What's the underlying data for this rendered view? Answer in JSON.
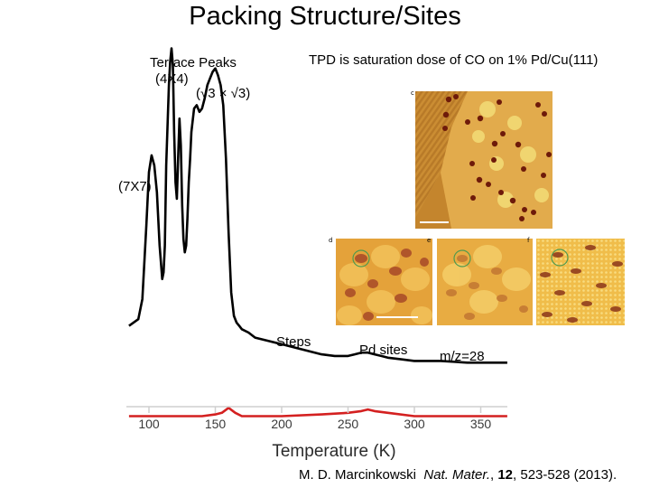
{
  "slide": {
    "title": "Packing Structure/Sites",
    "subtitle": "TPD is saturation dose of CO on 1% Pd/Cu(111)"
  },
  "annotations": {
    "terrace_peaks": "Terrace Peaks",
    "four_by_four": "(4X4)",
    "root3": "(√3 × √3)",
    "seven_by_seven": "(7X7)",
    "steps": "Steps",
    "pd_sites": "Pd sites",
    "mz": "m/z=28"
  },
  "stm_panels": {
    "c": "c",
    "d": "d",
    "e": "e",
    "f": "f"
  },
  "citation": {
    "author": "M. D. Marcinkowski",
    "journal": "Nat. Mater.",
    "comma1": ",",
    "volume": "12",
    "pages": ", 523-528 (2013)."
  },
  "colors": {
    "main_trace": "#000000",
    "reference_trace": "#d42020",
    "stm_background": "#e3a33e",
    "circle_marker": "#4f9a4f"
  },
  "chart_data": {
    "type": "line",
    "xlabel": "Temperature (K)",
    "xlim": [
      85,
      370
    ],
    "x_ticks": [
      100,
      150,
      200,
      250,
      300,
      350
    ],
    "y_axis_shown": false,
    "series": [
      {
        "color": "#000000",
        "x": [
          85,
          92,
          95,
          98,
          100,
          102,
          104,
          106,
          108,
          110,
          111,
          112,
          113,
          115,
          116,
          117,
          118,
          119,
          120,
          121,
          122,
          123,
          124,
          125,
          126,
          127,
          128,
          129,
          130,
          131,
          132,
          134,
          136,
          138,
          140,
          142,
          144,
          146,
          148,
          150,
          152,
          154,
          156,
          158,
          160,
          162,
          164,
          166,
          168,
          170,
          175,
          180,
          190,
          200,
          210,
          220,
          230,
          240,
          250,
          255,
          260,
          265,
          270,
          275,
          280,
          290,
          300,
          320,
          340,
          360,
          370
        ],
        "y": [
          0.12,
          0.14,
          0.2,
          0.42,
          0.58,
          0.63,
          0.6,
          0.52,
          0.36,
          0.26,
          0.28,
          0.36,
          0.6,
          0.84,
          0.91,
          0.95,
          0.9,
          0.7,
          0.55,
          0.5,
          0.62,
          0.74,
          0.66,
          0.48,
          0.38,
          0.34,
          0.36,
          0.44,
          0.55,
          0.62,
          0.7,
          0.77,
          0.78,
          0.76,
          0.77,
          0.8,
          0.84,
          0.86,
          0.88,
          0.89,
          0.87,
          0.84,
          0.78,
          0.62,
          0.4,
          0.22,
          0.15,
          0.13,
          0.12,
          0.11,
          0.1,
          0.085,
          0.075,
          0.065,
          0.055,
          0.045,
          0.035,
          0.03,
          0.03,
          0.035,
          0.04,
          0.04,
          0.035,
          0.03,
          0.025,
          0.02,
          0.015,
          0.015,
          0.01,
          0.01,
          0.01
        ]
      },
      {
        "color": "#d42020",
        "x": [
          85,
          100,
          120,
          140,
          150,
          155,
          160,
          165,
          170,
          180,
          200,
          230,
          250,
          260,
          265,
          270,
          280,
          300,
          330,
          370
        ],
        "y": [
          -0.15,
          -0.15,
          -0.15,
          -0.15,
          -0.145,
          -0.14,
          -0.125,
          -0.14,
          -0.15,
          -0.15,
          -0.15,
          -0.145,
          -0.14,
          -0.135,
          -0.13,
          -0.135,
          -0.14,
          -0.15,
          -0.15,
          -0.15
        ]
      }
    ]
  }
}
